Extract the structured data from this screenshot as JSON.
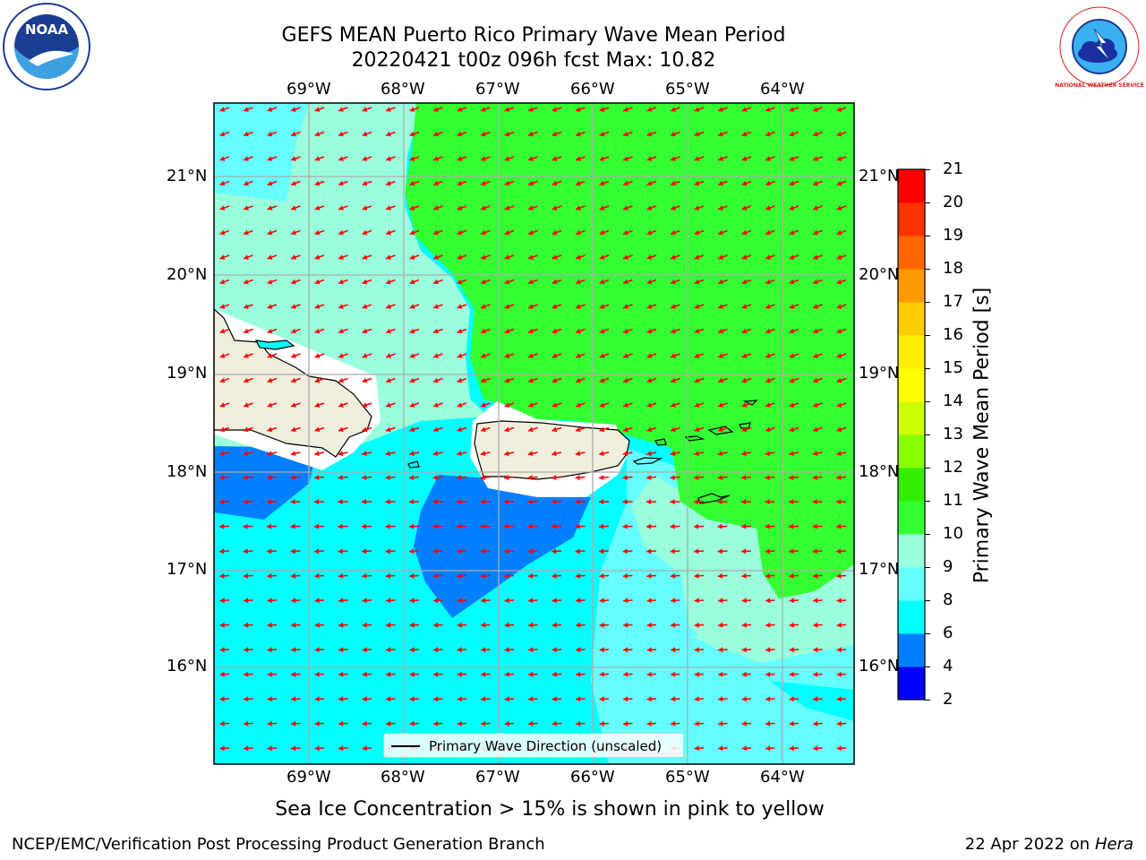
{
  "title": {
    "line1": "GEFS MEAN Puerto Rico Primary Wave Mean Period",
    "line2": "20220421 t00z 096h fcst   Max: 10.82"
  },
  "logos": {
    "noaa_text": "NOAA",
    "nws_ring_text": "NATIONAL WEATHER SERVICE"
  },
  "map": {
    "lon_labels": [
      "69°W",
      "68°W",
      "67°W",
      "66°W",
      "65°W",
      "64°W"
    ],
    "lat_labels": [
      "21°N",
      "20°N",
      "19°N",
      "18°N",
      "17°N",
      "16°N"
    ],
    "legend": "Primary Wave Direction (unscaled)",
    "arrow_color": "#ff0000"
  },
  "colorbar": {
    "label": "Primary Wave Mean Period [s]",
    "ticks": [
      "2",
      "4",
      "6",
      "8",
      "9",
      "10",
      "11",
      "12",
      "13",
      "14",
      "15",
      "16",
      "17",
      "18",
      "19",
      "20",
      "21"
    ],
    "colors": [
      "#0000ff",
      "#0080ff",
      "#00ffff",
      "#66ffff",
      "#99ffdd",
      "#33ff33",
      "#33ee00",
      "#88ff00",
      "#ccff00",
      "#ffff00",
      "#ffee00",
      "#ffcc00",
      "#ff9900",
      "#ff6600",
      "#ff3300",
      "#ff0000"
    ]
  },
  "caption": "Sea Ice Concentration > 15% is shown in pink to yellow",
  "footer": {
    "left": "NCEP/EMC/Verification Post Processing Product Generation Branch",
    "right_date": "22 Apr 2022 on",
    "right_host": "Hera"
  }
}
